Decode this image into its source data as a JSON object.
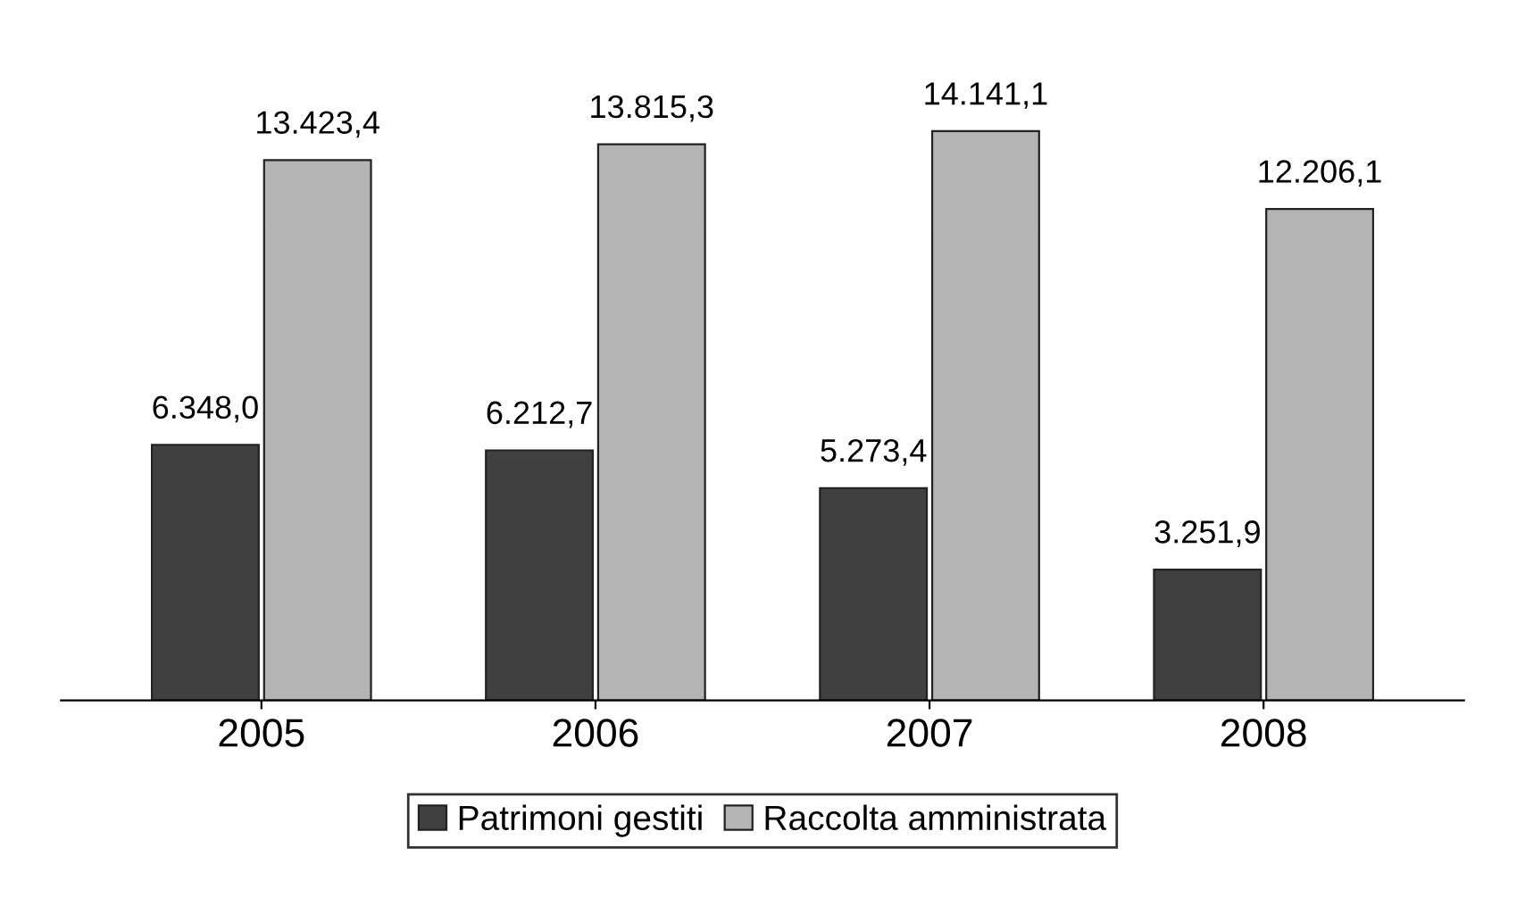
{
  "chart_data": {
    "type": "bar",
    "categories": [
      "2005",
      "2006",
      "2007",
      "2008"
    ],
    "series": [
      {
        "name": "Patrimoni gestiti",
        "color": "#404040",
        "values": [
          6348.0,
          6212.7,
          5273.4,
          3251.9
        ],
        "value_labels": [
          "6.348,0",
          "6.212,7",
          "5.273,4",
          "3.251,9"
        ]
      },
      {
        "name": "Raccolta amministrata",
        "color": "#b4b4b4",
        "values": [
          13423.4,
          13815.3,
          14141.1,
          12206.1
        ],
        "value_labels": [
          "13.423,4",
          "13.815,3",
          "14.141,1",
          "12.206,1"
        ]
      }
    ],
    "legend": "bottom",
    "grid": false
  }
}
